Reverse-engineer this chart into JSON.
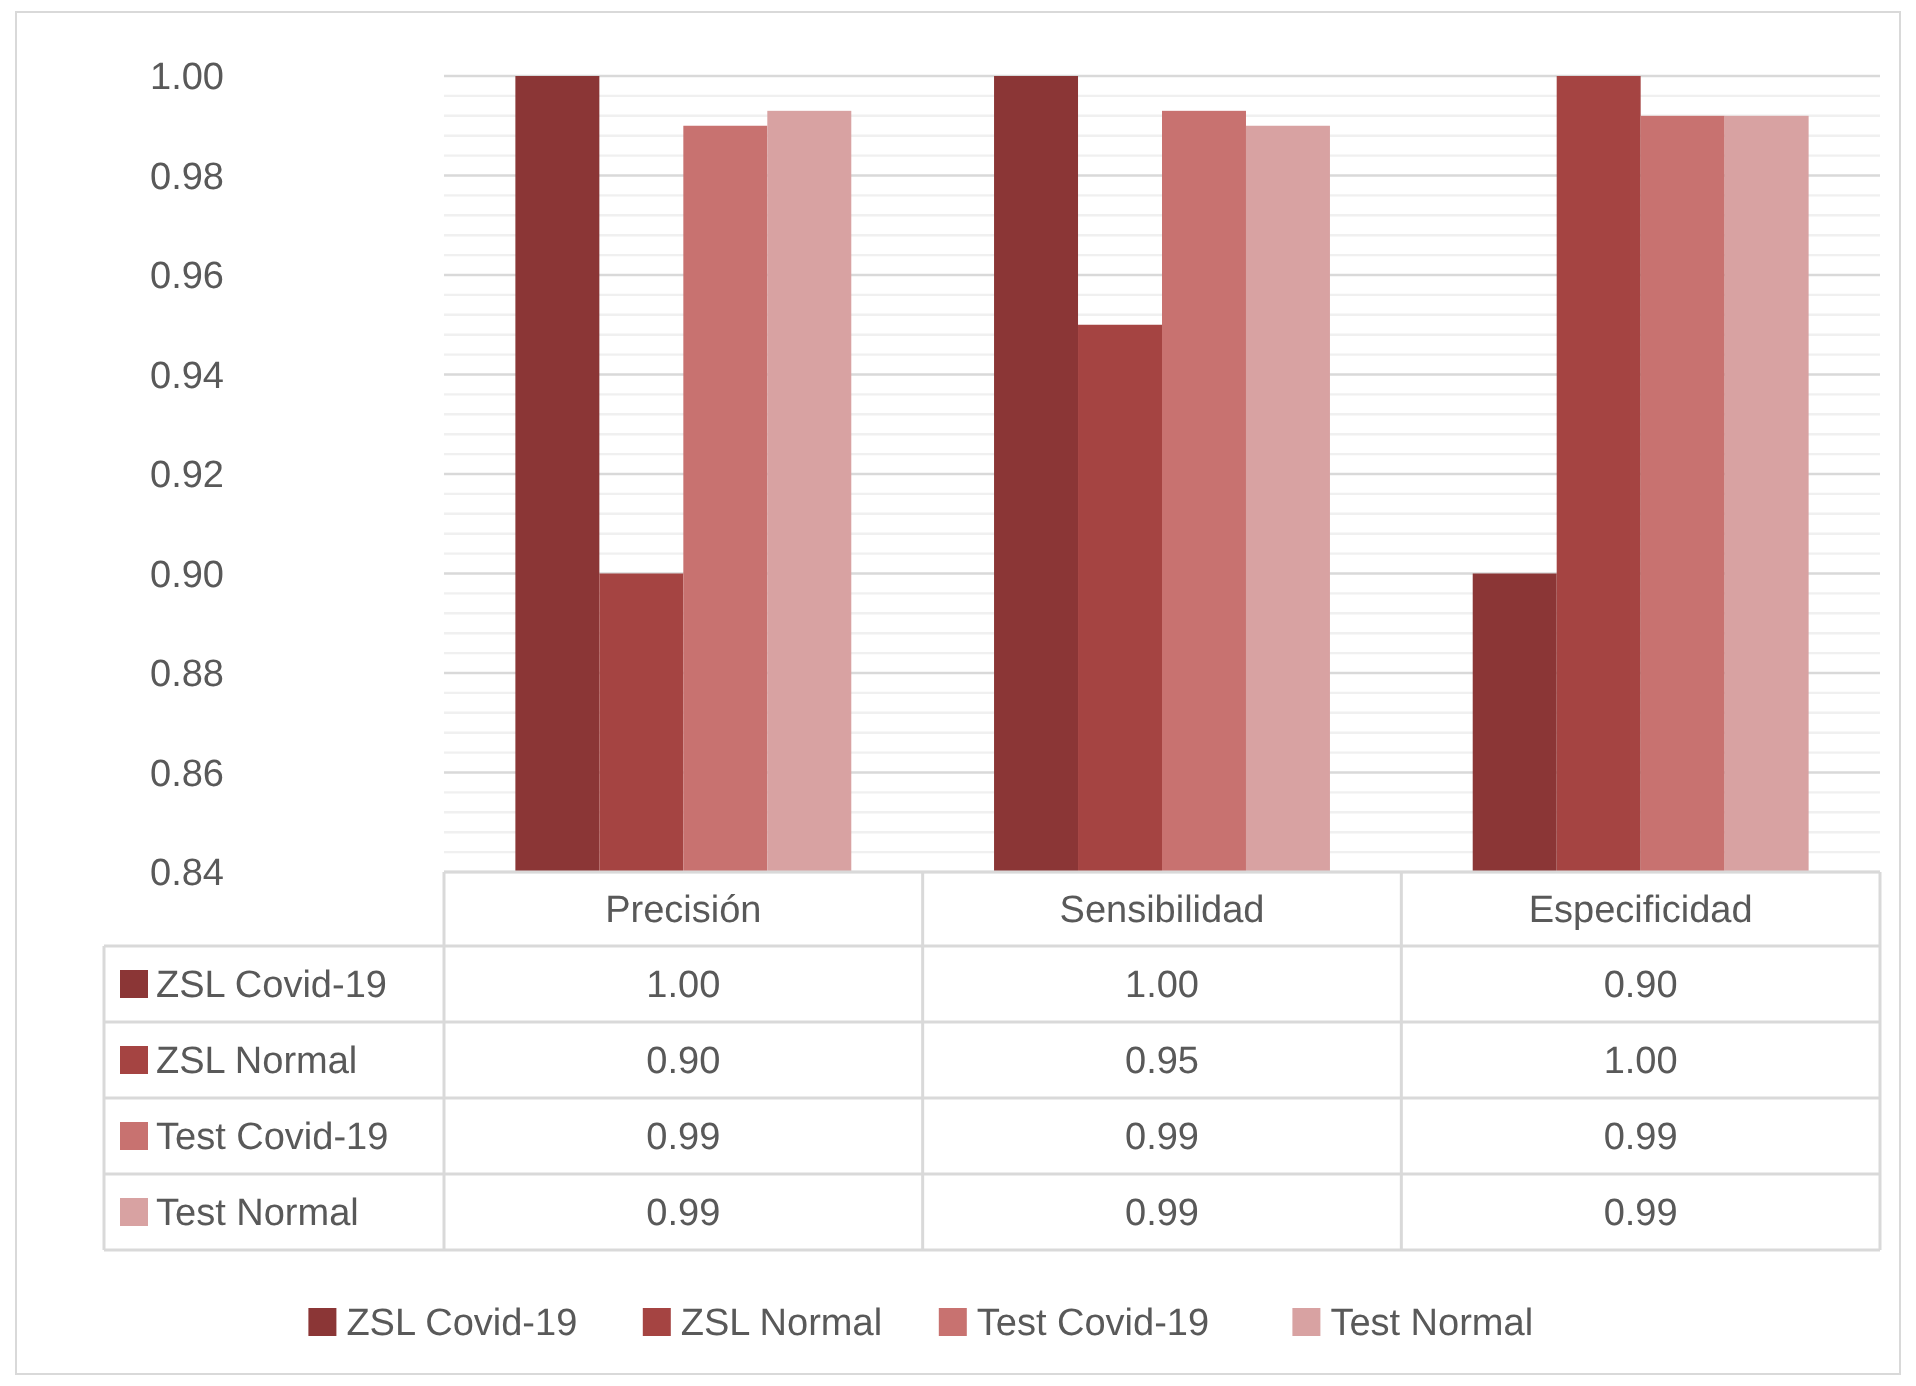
{
  "chart_data": {
    "type": "bar",
    "categories": [
      "Precisión",
      "Sensibilidad",
      "Especificidad"
    ],
    "series": [
      {
        "name": "ZSL Covid-19",
        "color": "#8b3636",
        "values": [
          1.0,
          1.0,
          0.9
        ],
        "value_labels": [
          "1.00",
          "1.00",
          "0.90"
        ]
      },
      {
        "name": "ZSL Normal",
        "color": "#a54442",
        "values": [
          0.9,
          0.95,
          1.0
        ],
        "value_labels": [
          "0.90",
          "0.95",
          "1.00"
        ]
      },
      {
        "name": "Test Covid-19",
        "color": "#c87270",
        "values": [
          0.99,
          0.993,
          0.992
        ],
        "value_labels": [
          "0.99",
          "0.99",
          "0.99"
        ]
      },
      {
        "name": "Test Normal",
        "color": "#d8a2a2",
        "values": [
          0.993,
          0.99,
          0.992
        ],
        "value_labels": [
          "0.99",
          "0.99",
          "0.99"
        ]
      }
    ],
    "ylim": [
      0.84,
      1.0
    ],
    "yticks": [
      {
        "value": 0.84,
        "label": "0.84"
      },
      {
        "value": 0.86,
        "label": "0.86"
      },
      {
        "value": 0.88,
        "label": "0.88"
      },
      {
        "value": 0.9,
        "label": "0.90"
      },
      {
        "value": 0.92,
        "label": "0.92"
      },
      {
        "value": 0.94,
        "label": "0.94"
      },
      {
        "value": 0.96,
        "label": "0.96"
      },
      {
        "value": 0.98,
        "label": "0.98"
      },
      {
        "value": 1.0,
        "label": "1.00"
      }
    ],
    "grid": "y",
    "legend": "bottom"
  }
}
